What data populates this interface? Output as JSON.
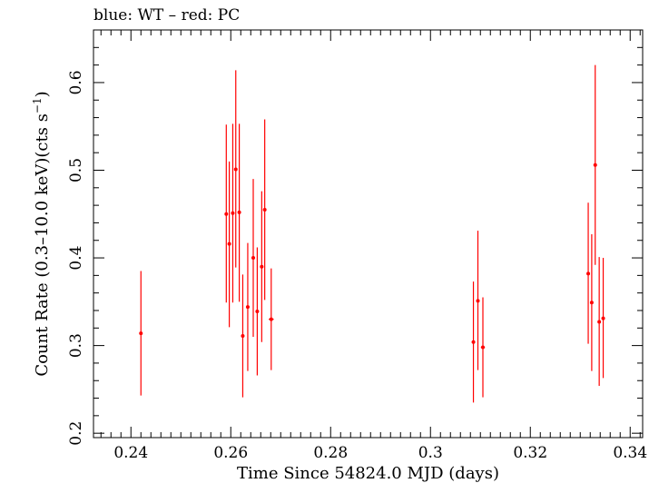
{
  "chart_data": {
    "type": "scatter",
    "title": "blue: WT – red: PC",
    "xlabel": "Time Since 54824.0 MJD (days)",
    "ylabel_main": "Count Rate (0.3–10.0 keV)(cts s",
    "ylabel_sup": "−1",
    "ylabel_close": ")",
    "xlim": [
      0.2325,
      0.3425
    ],
    "ylim": [
      0.195,
      0.66
    ],
    "xticks": [
      {
        "value": 0.24,
        "label": "0.24"
      },
      {
        "value": 0.26,
        "label": "0.26"
      },
      {
        "value": 0.28,
        "label": "0.28"
      },
      {
        "value": 0.3,
        "label": "0.3"
      },
      {
        "value": 0.32,
        "label": "0.32"
      },
      {
        "value": 0.34,
        "label": "0.34"
      }
    ],
    "yticks": [
      {
        "value": 0.2,
        "label": "0.2"
      },
      {
        "value": 0.3,
        "label": "0.3"
      },
      {
        "value": 0.4,
        "label": "0.4"
      },
      {
        "value": 0.5,
        "label": "0.5"
      },
      {
        "value": 0.6,
        "label": "0.6"
      }
    ],
    "grid": false,
    "series": [
      {
        "color": "#ff0000",
        "points": [
          {
            "x": 0.242,
            "y": 0.314,
            "ylo": 0.243,
            "yhi": 0.385,
            "xerr": 0.0002
          },
          {
            "x": 0.2591,
            "y": 0.45,
            "ylo": 0.349,
            "yhi": 0.552,
            "xerr": 0.0003
          },
          {
            "x": 0.2597,
            "y": 0.416,
            "ylo": 0.321,
            "yhi": 0.51,
            "xerr": 0.0003
          },
          {
            "x": 0.2604,
            "y": 0.451,
            "ylo": 0.349,
            "yhi": 0.553,
            "xerr": 0.0003
          },
          {
            "x": 0.261,
            "y": 0.501,
            "ylo": 0.389,
            "yhi": 0.614,
            "xerr": 0.0003
          },
          {
            "x": 0.2617,
            "y": 0.452,
            "ylo": 0.35,
            "yhi": 0.553,
            "xerr": 0.0003
          },
          {
            "x": 0.2624,
            "y": 0.311,
            "ylo": 0.241,
            "yhi": 0.381,
            "xerr": 0.0003
          },
          {
            "x": 0.2634,
            "y": 0.344,
            "ylo": 0.271,
            "yhi": 0.417,
            "xerr": 0.0003
          },
          {
            "x": 0.2645,
            "y": 0.4,
            "ylo": 0.31,
            "yhi": 0.49,
            "xerr": 0.0003
          },
          {
            "x": 0.2653,
            "y": 0.339,
            "ylo": 0.266,
            "yhi": 0.412,
            "xerr": 0.0003
          },
          {
            "x": 0.2662,
            "y": 0.39,
            "ylo": 0.304,
            "yhi": 0.476,
            "xerr": 0.0003
          },
          {
            "x": 0.2668,
            "y": 0.455,
            "ylo": 0.352,
            "yhi": 0.558,
            "xerr": 0.0003
          },
          {
            "x": 0.2681,
            "y": 0.33,
            "ylo": 0.272,
            "yhi": 0.388,
            "xerr": 0.0005
          },
          {
            "x": 0.3086,
            "y": 0.304,
            "ylo": 0.235,
            "yhi": 0.373,
            "xerr": 0.0003
          },
          {
            "x": 0.3095,
            "y": 0.351,
            "ylo": 0.272,
            "yhi": 0.431,
            "xerr": 0.0003
          },
          {
            "x": 0.3105,
            "y": 0.298,
            "ylo": 0.241,
            "yhi": 0.355,
            "xerr": 0.0004
          },
          {
            "x": 0.3316,
            "y": 0.382,
            "ylo": 0.302,
            "yhi": 0.463,
            "xerr": 0.0003
          },
          {
            "x": 0.3323,
            "y": 0.349,
            "ylo": 0.271,
            "yhi": 0.427,
            "xerr": 0.0003
          },
          {
            "x": 0.333,
            "y": 0.506,
            "ylo": 0.392,
            "yhi": 0.62,
            "xerr": 0.0002
          },
          {
            "x": 0.3338,
            "y": 0.327,
            "ylo": 0.254,
            "yhi": 0.401,
            "xerr": 0.0003
          },
          {
            "x": 0.3346,
            "y": 0.331,
            "ylo": 0.263,
            "yhi": 0.4,
            "xerr": 0.0003
          }
        ]
      }
    ]
  }
}
